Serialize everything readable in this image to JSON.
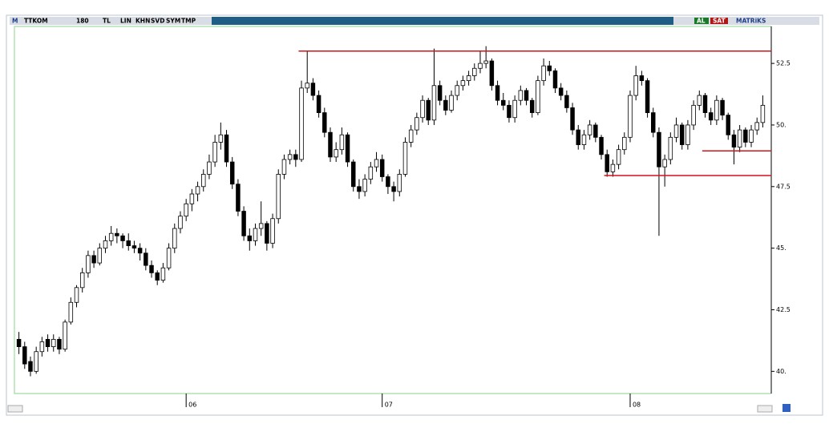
{
  "toolbar": {
    "logo": "M",
    "symbol": "TTKOM",
    "period": "180",
    "currency": "TL",
    "buttons": [
      "LIN",
      "KHN",
      "SVD",
      "SYM",
      "TMP"
    ],
    "buy": "AL",
    "sell": "SAT",
    "brand": "MATRiKS"
  },
  "chart_data": {
    "type": "candlestick",
    "categories": [
      null,
      null,
      null,
      null,
      null,
      null,
      null,
      null,
      null,
      null,
      null,
      null,
      null,
      null,
      null,
      null,
      null,
      null,
      null,
      null,
      null,
      null,
      null,
      null,
      null,
      null,
      null,
      null,
      null,
      "06",
      null,
      null,
      null,
      null,
      null,
      null,
      null,
      null,
      null,
      null,
      null,
      null,
      null,
      null,
      null,
      null,
      null,
      null,
      null,
      null,
      null,
      null,
      null,
      null,
      null,
      null,
      null,
      null,
      null,
      null,
      null,
      null,
      null,
      "07",
      null,
      null,
      null,
      null,
      null,
      null,
      null,
      null,
      null,
      null,
      null,
      null,
      null,
      null,
      null,
      null,
      null,
      null,
      null,
      null,
      null,
      null,
      null,
      null,
      null,
      null,
      null,
      null,
      null,
      null,
      null,
      null,
      null,
      null,
      null,
      null,
      null,
      null,
      null,
      null,
      null,
      null,
      "08",
      null,
      null,
      null,
      null,
      null,
      null,
      null,
      null,
      null,
      null,
      null,
      null,
      null,
      null,
      null,
      null,
      null,
      null,
      null,
      null,
      null,
      null,
      null
    ],
    "ohlc": [
      [
        41.3,
        41.6,
        40.7,
        41.0
      ],
      [
        41.0,
        41.2,
        40.1,
        40.3
      ],
      [
        40.4,
        40.6,
        39.8,
        40.0
      ],
      [
        40.0,
        41.0,
        39.9,
        40.8
      ],
      [
        40.8,
        41.4,
        40.6,
        41.2
      ],
      [
        41.3,
        41.5,
        40.8,
        41.0
      ],
      [
        41.0,
        41.5,
        40.8,
        41.3
      ],
      [
        41.3,
        41.4,
        40.7,
        40.9
      ],
      [
        40.9,
        42.1,
        40.8,
        42.0
      ],
      [
        42.0,
        43.0,
        41.9,
        42.8
      ],
      [
        42.8,
        43.5,
        42.6,
        43.4
      ],
      [
        43.4,
        44.2,
        43.2,
        44.0
      ],
      [
        44.0,
        44.9,
        43.8,
        44.7
      ],
      [
        44.7,
        44.9,
        44.2,
        44.4
      ],
      [
        44.4,
        45.2,
        44.3,
        45.0
      ],
      [
        45.0,
        45.5,
        44.8,
        45.3
      ],
      [
        45.3,
        45.9,
        45.1,
        45.6
      ],
      [
        45.6,
        45.8,
        45.2,
        45.5
      ],
      [
        45.5,
        45.6,
        45.0,
        45.3
      ],
      [
        45.3,
        45.6,
        44.9,
        45.1
      ],
      [
        45.1,
        45.3,
        44.8,
        45.0
      ],
      [
        45.0,
        45.2,
        44.5,
        44.8
      ],
      [
        44.8,
        45.0,
        44.1,
        44.3
      ],
      [
        44.3,
        44.5,
        43.8,
        44.0
      ],
      [
        44.0,
        44.1,
        43.5,
        43.7
      ],
      [
        43.7,
        44.4,
        43.6,
        44.2
      ],
      [
        44.2,
        45.2,
        44.1,
        45.0
      ],
      [
        45.0,
        46.0,
        44.8,
        45.8
      ],
      [
        45.8,
        46.5,
        45.6,
        46.3
      ],
      [
        46.3,
        47.0,
        46.1,
        46.8
      ],
      [
        46.8,
        47.4,
        46.5,
        47.2
      ],
      [
        47.2,
        47.7,
        46.9,
        47.5
      ],
      [
        47.5,
        48.2,
        47.3,
        48.0
      ],
      [
        48.0,
        48.8,
        47.8,
        48.5
      ],
      [
        48.5,
        49.6,
        48.3,
        49.3
      ],
      [
        49.3,
        50.1,
        49.0,
        49.6
      ],
      [
        49.6,
        49.8,
        48.3,
        48.5
      ],
      [
        48.5,
        48.7,
        47.4,
        47.6
      ],
      [
        47.6,
        47.8,
        46.3,
        46.5
      ],
      [
        46.5,
        46.7,
        45.3,
        45.5
      ],
      [
        45.5,
        45.8,
        44.9,
        45.3
      ],
      [
        45.3,
        46.0,
        45.1,
        45.8
      ],
      [
        45.8,
        46.9,
        45.5,
        46.0
      ],
      [
        46.0,
        46.1,
        44.9,
        45.2
      ],
      [
        45.2,
        46.4,
        45.0,
        46.2
      ],
      [
        46.2,
        48.2,
        46.0,
        48.0
      ],
      [
        48.0,
        48.8,
        47.8,
        48.6
      ],
      [
        48.6,
        49.0,
        48.4,
        48.8
      ],
      [
        48.8,
        49.0,
        48.3,
        48.6
      ],
      [
        48.6,
        51.8,
        48.5,
        51.5
      ],
      [
        51.5,
        53.0,
        51.3,
        51.7
      ],
      [
        51.7,
        51.9,
        51.0,
        51.2
      ],
      [
        51.2,
        51.4,
        50.3,
        50.5
      ],
      [
        50.5,
        50.7,
        49.5,
        49.7
      ],
      [
        49.7,
        49.9,
        48.5,
        48.7
      ],
      [
        48.7,
        49.3,
        48.5,
        49.0
      ],
      [
        49.0,
        49.9,
        48.8,
        49.6
      ],
      [
        49.6,
        49.7,
        48.3,
        48.5
      ],
      [
        48.5,
        48.6,
        47.3,
        47.5
      ],
      [
        47.5,
        47.8,
        47.0,
        47.3
      ],
      [
        47.3,
        48.0,
        47.1,
        47.8
      ],
      [
        47.8,
        48.5,
        47.6,
        48.3
      ],
      [
        48.3,
        48.9,
        48.1,
        48.6
      ],
      [
        48.6,
        48.8,
        47.7,
        47.9
      ],
      [
        47.9,
        48.0,
        47.2,
        47.5
      ],
      [
        47.5,
        47.7,
        46.9,
        47.3
      ],
      [
        47.3,
        48.2,
        47.1,
        48.0
      ],
      [
        48.0,
        49.5,
        47.9,
        49.3
      ],
      [
        49.3,
        50.0,
        49.1,
        49.8
      ],
      [
        49.8,
        50.5,
        49.6,
        50.3
      ],
      [
        50.3,
        51.2,
        50.1,
        51.0
      ],
      [
        51.0,
        51.1,
        50.0,
        50.2
      ],
      [
        50.2,
        53.1,
        50.0,
        51.6
      ],
      [
        51.6,
        51.8,
        50.8,
        51.0
      ],
      [
        51.0,
        51.2,
        50.4,
        50.6
      ],
      [
        50.6,
        51.4,
        50.5,
        51.2
      ],
      [
        51.2,
        51.8,
        51.0,
        51.6
      ],
      [
        51.6,
        52.0,
        51.4,
        51.8
      ],
      [
        51.8,
        52.2,
        51.6,
        52.0
      ],
      [
        52.0,
        52.5,
        51.8,
        52.3
      ],
      [
        52.3,
        53.0,
        52.1,
        52.5
      ],
      [
        52.5,
        53.2,
        52.3,
        52.6
      ],
      [
        52.6,
        52.7,
        51.4,
        51.6
      ],
      [
        51.6,
        51.8,
        50.8,
        51.0
      ],
      [
        51.0,
        51.3,
        50.6,
        50.8
      ],
      [
        50.8,
        51.0,
        50.1,
        50.3
      ],
      [
        50.3,
        51.2,
        50.1,
        51.0
      ],
      [
        51.0,
        51.6,
        50.8,
        51.4
      ],
      [
        51.4,
        51.5,
        50.8,
        51.0
      ],
      [
        51.0,
        51.1,
        50.3,
        50.5
      ],
      [
        50.5,
        52.0,
        50.4,
        51.8
      ],
      [
        51.8,
        52.7,
        51.6,
        52.4
      ],
      [
        52.4,
        52.6,
        52.0,
        52.2
      ],
      [
        52.2,
        52.3,
        51.3,
        51.5
      ],
      [
        51.5,
        51.7,
        51.0,
        51.2
      ],
      [
        51.2,
        51.4,
        50.5,
        50.7
      ],
      [
        50.7,
        50.9,
        49.6,
        49.8
      ],
      [
        49.8,
        50.0,
        49.0,
        49.2
      ],
      [
        49.2,
        49.8,
        49.0,
        49.6
      ],
      [
        49.6,
        50.2,
        49.4,
        50.0
      ],
      [
        50.0,
        50.1,
        49.3,
        49.5
      ],
      [
        49.5,
        49.6,
        48.6,
        48.8
      ],
      [
        48.8,
        49.0,
        47.9,
        48.1
      ],
      [
        48.1,
        48.6,
        47.9,
        48.4
      ],
      [
        48.4,
        49.2,
        48.2,
        49.0
      ],
      [
        49.0,
        49.7,
        48.8,
        49.5
      ],
      [
        49.5,
        51.4,
        49.3,
        51.2
      ],
      [
        51.2,
        52.4,
        51.0,
        52.0
      ],
      [
        52.0,
        52.2,
        51.6,
        51.8
      ],
      [
        51.8,
        51.9,
        50.3,
        50.5
      ],
      [
        50.5,
        50.7,
        49.5,
        49.7
      ],
      [
        49.7,
        49.9,
        45.5,
        48.3
      ],
      [
        48.3,
        48.8,
        47.5,
        48.6
      ],
      [
        48.6,
        49.7,
        48.4,
        49.5
      ],
      [
        49.5,
        50.3,
        49.3,
        50.0
      ],
      [
        50.0,
        50.1,
        49.0,
        49.2
      ],
      [
        49.2,
        50.2,
        49.0,
        50.0
      ],
      [
        50.0,
        51.0,
        49.8,
        50.8
      ],
      [
        50.8,
        51.4,
        50.6,
        51.2
      ],
      [
        51.2,
        51.3,
        50.3,
        50.5
      ],
      [
        50.5,
        50.7,
        50.0,
        50.2
      ],
      [
        50.2,
        51.2,
        50.0,
        51.0
      ],
      [
        51.0,
        51.1,
        50.2,
        50.4
      ],
      [
        50.4,
        50.5,
        49.4,
        49.6
      ],
      [
        49.6,
        49.8,
        48.4,
        49.1
      ],
      [
        49.1,
        50.0,
        48.9,
        49.8
      ],
      [
        49.8,
        49.9,
        49.1,
        49.3
      ],
      [
        49.3,
        50.0,
        49.1,
        49.8
      ],
      [
        49.8,
        50.3,
        49.6,
        50.1
      ],
      [
        50.1,
        51.2,
        49.9,
        50.8
      ]
    ],
    "ylim": [
      39.1,
      54.0
    ],
    "yticks": [
      {
        "value": 40,
        "label": "40."
      },
      {
        "value": 42.5,
        "label": "42.5"
      },
      {
        "value": 45,
        "label": "45."
      },
      {
        "value": 47.5,
        "label": "47.5"
      },
      {
        "value": 50,
        "label": "50."
      },
      {
        "value": 52.5,
        "label": "52.5"
      }
    ],
    "hlines": [
      {
        "value": 53.0,
        "start": 49
      },
      {
        "value": 48.95,
        "start": 119
      },
      {
        "value": 47.95,
        "start": 102
      }
    ],
    "hline_color": "#d0141c",
    "up_color": "#ffffff",
    "down_color": "#000000"
  }
}
